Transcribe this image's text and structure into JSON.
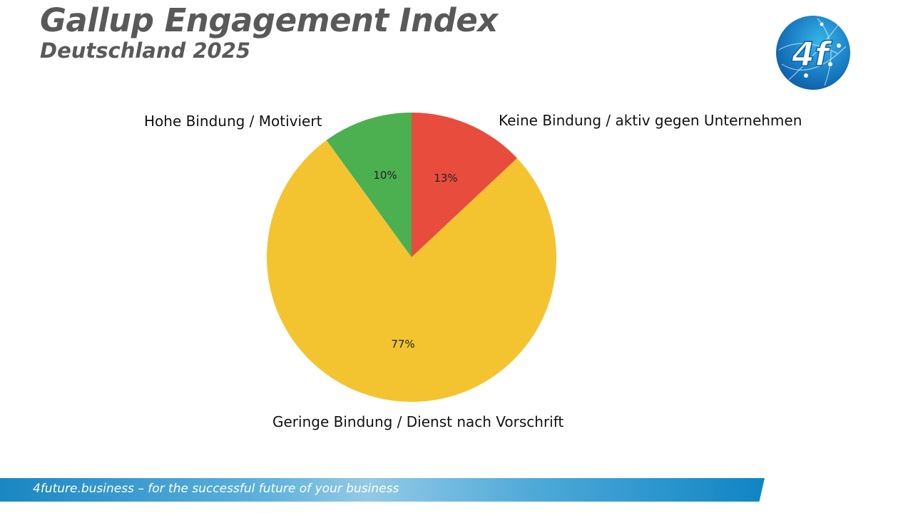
{
  "header": {
    "title": "Gallup Engagement Index",
    "subtitle": "Deutschland 2025"
  },
  "logo": {
    "text": "4f",
    "icon": "globe-network-logo",
    "color": "#1a7fc4"
  },
  "chart_data": {
    "type": "pie",
    "title": "Gallup Engagement Index",
    "subtitle": "Deutschland 2025",
    "start_angle_deg": 90,
    "direction": "clockwise",
    "categories": [
      "Keine Bindung / aktiv gegen Unternehmen",
      "Geringe Bindung / Dienst nach Vorschrift",
      "Hohe Bindung / Motiviert"
    ],
    "values": [
      13,
      77,
      10
    ],
    "value_labels": [
      "13%",
      "77%",
      "10%"
    ],
    "colors": [
      "#e74c3c",
      "#f4c430",
      "#4caf50"
    ],
    "legend": "none (labels placed outside slices)"
  },
  "footer": {
    "tagline": "4future.business – for the successful future of your business"
  }
}
